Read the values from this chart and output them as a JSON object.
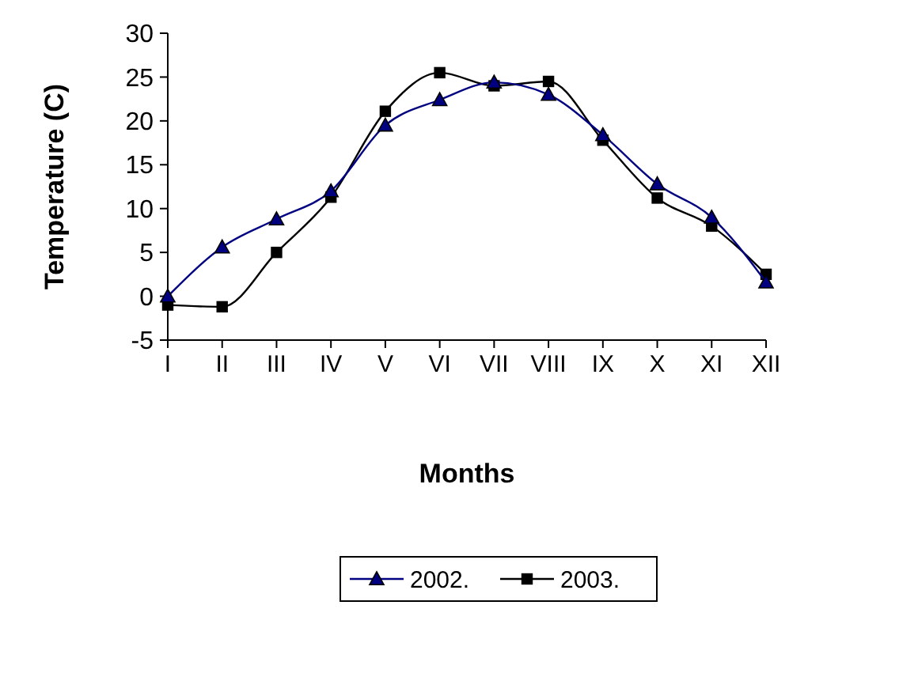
{
  "chart_data": {
    "type": "line",
    "xlabel": "Months",
    "ylabel": "Temperature (C)",
    "categories": [
      "I",
      "II",
      "III",
      "IV",
      "V",
      "VI",
      "VII",
      "VIII",
      "IX",
      "X",
      "XI",
      "XII"
    ],
    "series": [
      {
        "name": "2002.",
        "color": "#000080",
        "marker": "triangle",
        "values": [
          0,
          5.6,
          8.8,
          12,
          19.5,
          22.4,
          24.4,
          23,
          18.4,
          12.8,
          9,
          1.6
        ]
      },
      {
        "name": "2003.",
        "color": "#000000",
        "marker": "square",
        "values": [
          -1,
          -1.2,
          5,
          11.3,
          21.1,
          25.5,
          24,
          24.5,
          17.8,
          11.2,
          8,
          2.5
        ]
      }
    ],
    "ylim": [
      -5,
      30
    ],
    "yticks": [
      -5,
      0,
      5,
      10,
      15,
      20,
      25,
      30
    ],
    "grid": false,
    "legend": "bottom"
  }
}
